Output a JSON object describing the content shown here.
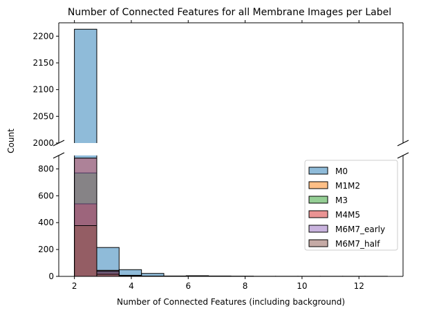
{
  "chart_data": {
    "type": "bar",
    "subtype": "histogram-broken-y-axis",
    "title": "Number of Connected Features for all Membrane Images per Label",
    "xlabel": "Number of Connected Features (including background)",
    "ylabel": "Count",
    "xlim": [
      1.45,
      13.55
    ],
    "xticks": [
      "2",
      "4",
      "6",
      "8",
      "10",
      "12"
    ],
    "ylim_upper": [
      2000,
      2225
    ],
    "yticks_upper": [
      "2000",
      "2050",
      "2100",
      "2150",
      "2200"
    ],
    "ylim_lower": [
      0,
      900
    ],
    "yticks_lower": [
      "0",
      "200",
      "400",
      "600",
      "800"
    ],
    "bin_edges": [
      2.0,
      2.786,
      3.571,
      4.357,
      5.143,
      5.929,
      6.714,
      7.5,
      8.286,
      9.071,
      9.857,
      10.643,
      11.429,
      12.214,
      13.0
    ],
    "legend_position": "center-right",
    "grid": false,
    "series": [
      {
        "name": "M0",
        "color": "#1f77b4",
        "values": [
          2213,
          215,
          50,
          22,
          3,
          5,
          3,
          2,
          1,
          1,
          1,
          1,
          1,
          1
        ]
      },
      {
        "name": "M1M2",
        "color": "#ff7f0e",
        "values": [
          880,
          45,
          8,
          2,
          1,
          1,
          0,
          0,
          0,
          0,
          0,
          0,
          0,
          0
        ]
      },
      {
        "name": "M3",
        "color": "#2ca02c",
        "values": [
          770,
          35,
          6,
          2,
          1,
          0,
          0,
          0,
          0,
          0,
          0,
          0,
          0,
          0
        ]
      },
      {
        "name": "M4M5",
        "color": "#d62728",
        "values": [
          540,
          25,
          4,
          1,
          0,
          0,
          0,
          0,
          0,
          0,
          0,
          0,
          0,
          0
        ]
      },
      {
        "name": "M6M7_early",
        "color": "#9467bd",
        "values": [
          880,
          40,
          5,
          1,
          0,
          0,
          0,
          0,
          0,
          0,
          0,
          0,
          0,
          0
        ]
      },
      {
        "name": "M6M7_half",
        "color": "#8c564b",
        "values": [
          378,
          15,
          3,
          1,
          0,
          0,
          0,
          0,
          0,
          0,
          0,
          0,
          0,
          0
        ]
      }
    ]
  }
}
